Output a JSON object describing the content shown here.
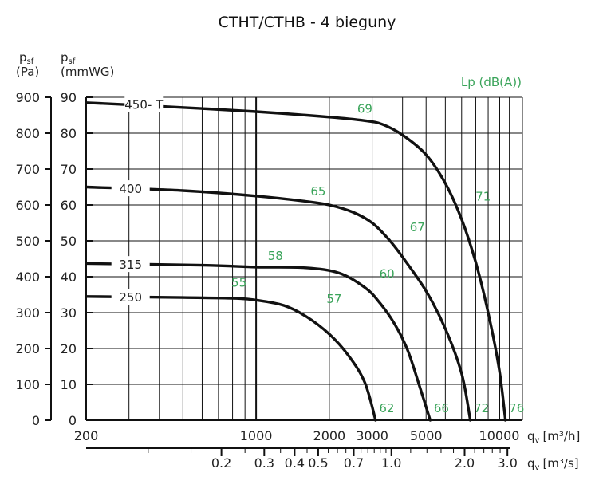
{
  "title": "CTHT/CTHB - 4 bieguny",
  "chart_data": {
    "type": "line",
    "title": "CTHT/CTHB - 4 bieguny",
    "x_scale": "log",
    "xlim": [
      200,
      12000
    ],
    "ylim": [
      0,
      900
    ],
    "grid": true,
    "left_axis": {
      "label_main": "p",
      "label_sub": "sf",
      "unit": "(Pa)",
      "ticks": [
        0,
        100,
        200,
        300,
        400,
        500,
        600,
        700,
        800,
        900
      ]
    },
    "right_axis": {
      "label_main": "p",
      "label_sub": "sf",
      "unit": "(mmWG)",
      "ticks": [
        0,
        10,
        20,
        30,
        40,
        50,
        60,
        70,
        80,
        90
      ]
    },
    "bottom_axis": {
      "label": "qv [m³/h]",
      "label_main": "q",
      "label_sub": "v",
      "label_unit": "[m³/h]",
      "tick_values": [
        200,
        1000,
        2000,
        3000,
        5000,
        10000
      ],
      "tick_labels": [
        "200",
        "1000",
        "2000",
        "3000",
        "5000",
        "10000"
      ]
    },
    "secondary_axis": {
      "label": "qv [m³/s]",
      "label_main": "q",
      "label_sub": "v",
      "label_unit": "[m³/s]",
      "tick_values": [
        0.2,
        0.3,
        0.4,
        0.5,
        0.7,
        1.0,
        2.0,
        3.0
      ],
      "tick_labels": [
        "0.2",
        "0.3",
        "0.4",
        "0.5",
        "0.7",
        "1.0",
        "2.0",
        "3.0"
      ]
    },
    "sound_label": "Lp (dB(A))",
    "series": [
      {
        "name": "450- T",
        "points": [
          [
            200,
            885
          ],
          [
            400,
            875
          ],
          [
            1000,
            860
          ],
          [
            2000,
            845
          ],
          [
            2800,
            835
          ],
          [
            3300,
            825
          ],
          [
            4000,
            795
          ],
          [
            5000,
            740
          ],
          [
            6000,
            660
          ],
          [
            7000,
            560
          ],
          [
            8000,
            440
          ],
          [
            9000,
            300
          ],
          [
            10000,
            140
          ],
          [
            10600,
            0
          ]
        ],
        "lp": [
          {
            "value": "69",
            "at": [
              2800,
              835
            ]
          },
          {
            "value": "71",
            "at": [
              8200,
              590
            ]
          },
          {
            "value": "76",
            "at": [
              10600,
              0
            ]
          }
        ]
      },
      {
        "name": "400",
        "points": [
          [
            200,
            650
          ],
          [
            500,
            640
          ],
          [
            1000,
            625
          ],
          [
            1600,
            610
          ],
          [
            2000,
            600
          ],
          [
            2500,
            580
          ],
          [
            3000,
            550
          ],
          [
            3500,
            505
          ],
          [
            4000,
            455
          ],
          [
            5000,
            360
          ],
          [
            6000,
            255
          ],
          [
            7000,
            130
          ],
          [
            7600,
            0
          ]
        ],
        "lp": [
          {
            "value": "65",
            "at": [
              1800,
              605
            ]
          },
          {
            "value": "67",
            "at": [
              4400,
              505
            ]
          },
          {
            "value": "72",
            "at": [
              7600,
              0
            ]
          }
        ]
      },
      {
        "name": "315",
        "points": [
          [
            200,
            437
          ],
          [
            600,
            432
          ],
          [
            1000,
            427
          ],
          [
            1600,
            425
          ],
          [
            2200,
            410
          ],
          [
            2800,
            370
          ],
          [
            3200,
            330
          ],
          [
            3700,
            270
          ],
          [
            4200,
            195
          ],
          [
            4700,
            95
          ],
          [
            5200,
            0
          ]
        ],
        "lp": [
          {
            "value": "58",
            "at": [
              1200,
              425
            ]
          },
          {
            "value": "60",
            "at": [
              3300,
              375
            ]
          },
          {
            "value": "66",
            "at": [
              5200,
              0
            ]
          }
        ]
      },
      {
        "name": "250",
        "points": [
          [
            200,
            345
          ],
          [
            500,
            342
          ],
          [
            800,
            340
          ],
          [
            1000,
            335
          ],
          [
            1300,
            320
          ],
          [
            1600,
            290
          ],
          [
            2000,
            240
          ],
          [
            2400,
            180
          ],
          [
            2800,
            105
          ],
          [
            3100,
            0
          ]
        ],
        "lp": [
          {
            "value": "55",
            "at": [
              850,
              350
            ]
          },
          {
            "value": "57",
            "at": [
              2000,
              305
            ]
          },
          {
            "value": "62",
            "at": [
              3100,
              0
            ]
          }
        ]
      }
    ]
  }
}
